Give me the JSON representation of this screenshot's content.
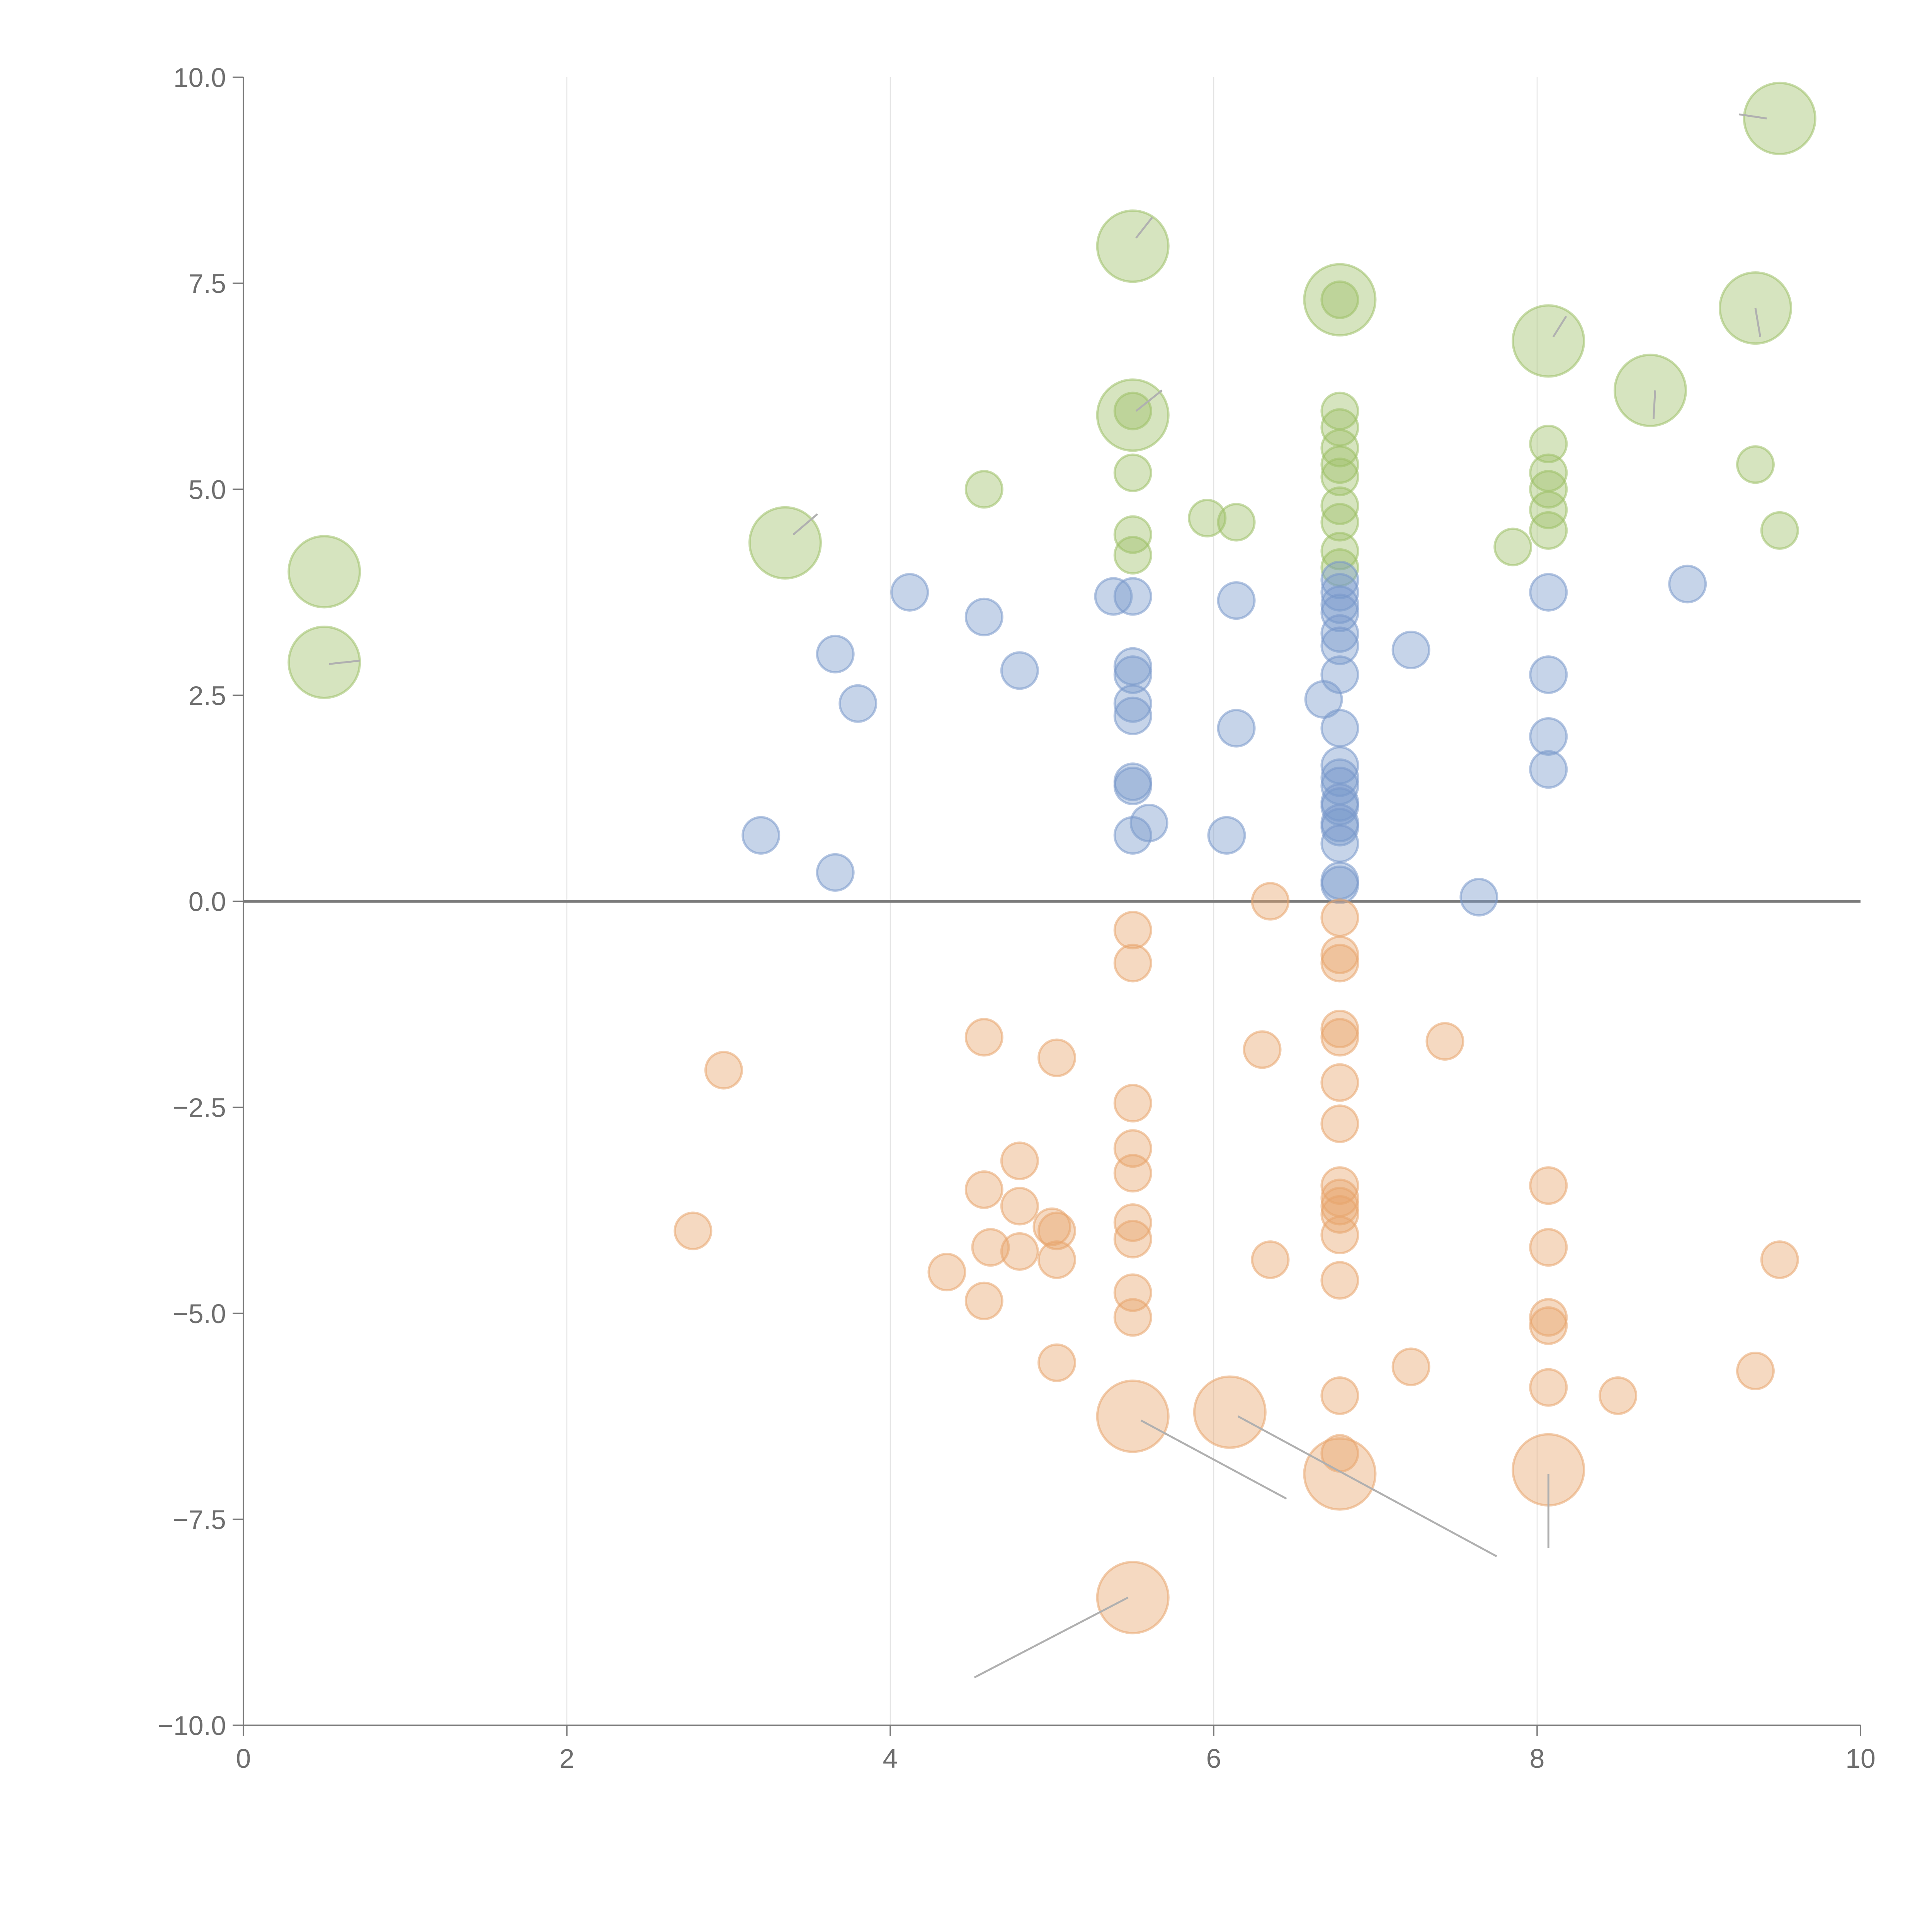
{
  "chart_data": {
    "type": "scatter",
    "title": "",
    "xlabel": "",
    "ylabel": "",
    "xlim": [
      0,
      10
    ],
    "ylim": [
      -10,
      10
    ],
    "grid": {
      "x": true,
      "y": false
    },
    "zero_line": true,
    "x_ticks": [
      "0",
      "2",
      "4",
      "6",
      "8",
      "10"
    ],
    "x_tick_values": [
      0,
      2,
      4,
      6,
      8,
      10
    ],
    "y_ticks": [
      "10.0",
      "7.5",
      "5.0",
      "2.5",
      "0.0",
      "−2.5",
      "−5.0",
      "−7.5",
      "−10.0"
    ],
    "y_tick_values": [
      10,
      7.5,
      5,
      2.5,
      0,
      -2.5,
      -5,
      -7.5,
      -10
    ],
    "series": [
      {
        "name": "green",
        "color": "#9dbf66",
        "points": [
          {
            "x": 0.5,
            "y": 4.0,
            "size": "large"
          },
          {
            "x": 0.5,
            "y": 2.9,
            "size": "large"
          },
          {
            "x": 3.35,
            "y": 4.35,
            "size": "large"
          },
          {
            "x": 5.5,
            "y": 7.95,
            "size": "large"
          },
          {
            "x": 5.5,
            "y": 5.9,
            "size": "large"
          },
          {
            "x": 6.78,
            "y": 7.3,
            "size": "large"
          },
          {
            "x": 8.07,
            "y": 6.8,
            "size": "large"
          },
          {
            "x": 8.7,
            "y": 6.2,
            "size": "large"
          },
          {
            "x": 9.35,
            "y": 7.2,
            "size": "large"
          },
          {
            "x": 9.5,
            "y": 9.5,
            "size": "large"
          },
          {
            "x": 4.58,
            "y": 5.0,
            "size": "small"
          },
          {
            "x": 5.5,
            "y": 5.2,
            "size": "small"
          },
          {
            "x": 5.5,
            "y": 4.45,
            "size": "small"
          },
          {
            "x": 5.5,
            "y": 4.2,
            "size": "small"
          },
          {
            "x": 5.5,
            "y": 5.95,
            "size": "small"
          },
          {
            "x": 5.96,
            "y": 4.65,
            "size": "small"
          },
          {
            "x": 6.14,
            "y": 4.6,
            "size": "small"
          },
          {
            "x": 6.78,
            "y": 7.3,
            "size": "small"
          },
          {
            "x": 6.78,
            "y": 5.95,
            "size": "small"
          },
          {
            "x": 6.78,
            "y": 5.75,
            "size": "small"
          },
          {
            "x": 6.78,
            "y": 5.5,
            "size": "small"
          },
          {
            "x": 6.78,
            "y": 5.3,
            "size": "small"
          },
          {
            "x": 6.78,
            "y": 5.15,
            "size": "small"
          },
          {
            "x": 6.78,
            "y": 4.8,
            "size": "small"
          },
          {
            "x": 6.78,
            "y": 4.6,
            "size": "small"
          },
          {
            "x": 6.78,
            "y": 4.25,
            "size": "small"
          },
          {
            "x": 6.78,
            "y": 4.05,
            "size": "small"
          },
          {
            "x": 8.07,
            "y": 5.55,
            "size": "small"
          },
          {
            "x": 8.07,
            "y": 5.2,
            "size": "small"
          },
          {
            "x": 8.07,
            "y": 5.0,
            "size": "small"
          },
          {
            "x": 8.07,
            "y": 4.75,
            "size": "small"
          },
          {
            "x": 8.07,
            "y": 4.5,
            "size": "small"
          },
          {
            "x": 7.85,
            "y": 4.3,
            "size": "small"
          },
          {
            "x": 9.35,
            "y": 5.3,
            "size": "small"
          },
          {
            "x": 9.5,
            "y": 4.5,
            "size": "small"
          }
        ]
      },
      {
        "name": "blue",
        "color": "#7898cb",
        "points": [
          {
            "x": 4.12,
            "y": 3.75,
            "size": "small"
          },
          {
            "x": 4.58,
            "y": 3.45,
            "size": "small"
          },
          {
            "x": 3.66,
            "y": 3.0,
            "size": "small"
          },
          {
            "x": 3.8,
            "y": 2.4,
            "size": "small"
          },
          {
            "x": 4.8,
            "y": 2.8,
            "size": "small"
          },
          {
            "x": 3.2,
            "y": 0.8,
            "size": "small"
          },
          {
            "x": 3.66,
            "y": 0.35,
            "size": "small"
          },
          {
            "x": 5.38,
            "y": 3.7,
            "size": "small"
          },
          {
            "x": 5.5,
            "y": 3.7,
            "size": "small"
          },
          {
            "x": 5.5,
            "y": 2.85,
            "size": "small"
          },
          {
            "x": 5.5,
            "y": 2.75,
            "size": "small"
          },
          {
            "x": 5.5,
            "y": 2.4,
            "size": "small"
          },
          {
            "x": 5.5,
            "y": 2.25,
            "size": "small"
          },
          {
            "x": 5.5,
            "y": 1.45,
            "size": "small"
          },
          {
            "x": 5.5,
            "y": 1.4,
            "size": "small"
          },
          {
            "x": 5.6,
            "y": 0.95,
            "size": "small"
          },
          {
            "x": 5.5,
            "y": 0.8,
            "size": "small"
          },
          {
            "x": 6.14,
            "y": 3.65,
            "size": "small"
          },
          {
            "x": 6.14,
            "y": 2.1,
            "size": "small"
          },
          {
            "x": 6.08,
            "y": 0.8,
            "size": "small"
          },
          {
            "x": 6.78,
            "y": 3.9,
            "size": "small"
          },
          {
            "x": 6.78,
            "y": 3.75,
            "size": "small"
          },
          {
            "x": 6.78,
            "y": 3.6,
            "size": "small"
          },
          {
            "x": 6.78,
            "y": 3.5,
            "size": "small"
          },
          {
            "x": 6.78,
            "y": 3.25,
            "size": "small"
          },
          {
            "x": 6.78,
            "y": 3.1,
            "size": "small"
          },
          {
            "x": 6.78,
            "y": 2.75,
            "size": "small"
          },
          {
            "x": 6.68,
            "y": 2.45,
            "size": "small"
          },
          {
            "x": 6.78,
            "y": 2.1,
            "size": "small"
          },
          {
            "x": 6.78,
            "y": 1.65,
            "size": "small"
          },
          {
            "x": 6.78,
            "y": 1.5,
            "size": "small"
          },
          {
            "x": 6.78,
            "y": 1.4,
            "size": "small"
          },
          {
            "x": 6.78,
            "y": 1.2,
            "size": "small"
          },
          {
            "x": 6.78,
            "y": 1.15,
            "size": "small"
          },
          {
            "x": 6.78,
            "y": 0.95,
            "size": "small"
          },
          {
            "x": 6.78,
            "y": 0.9,
            "size": "small"
          },
          {
            "x": 6.78,
            "y": 0.7,
            "size": "small"
          },
          {
            "x": 6.78,
            "y": 0.25,
            "size": "small"
          },
          {
            "x": 6.78,
            "y": 0.2,
            "size": "small"
          },
          {
            "x": 7.22,
            "y": 3.05,
            "size": "small"
          },
          {
            "x": 7.64,
            "y": 0.05,
            "size": "small"
          },
          {
            "x": 8.07,
            "y": 3.75,
            "size": "small"
          },
          {
            "x": 8.07,
            "y": 2.75,
            "size": "small"
          },
          {
            "x": 8.07,
            "y": 2.0,
            "size": "small"
          },
          {
            "x": 8.07,
            "y": 1.6,
            "size": "small"
          },
          {
            "x": 8.93,
            "y": 3.85,
            "size": "small"
          }
        ]
      },
      {
        "name": "orange",
        "color": "#e8a46c",
        "points": [
          {
            "x": 5.5,
            "y": -6.25,
            "size": "large"
          },
          {
            "x": 6.1,
            "y": -6.2,
            "size": "large"
          },
          {
            "x": 6.78,
            "y": -6.95,
            "size": "large"
          },
          {
            "x": 8.07,
            "y": -6.9,
            "size": "large"
          },
          {
            "x": 5.5,
            "y": -8.45,
            "size": "large"
          },
          {
            "x": 2.97,
            "y": -2.05,
            "size": "small"
          },
          {
            "x": 2.78,
            "y": -4.0,
            "size": "small"
          },
          {
            "x": 4.58,
            "y": -1.65,
            "size": "small"
          },
          {
            "x": 5.03,
            "y": -1.9,
            "size": "small"
          },
          {
            "x": 4.8,
            "y": -3.15,
            "size": "small"
          },
          {
            "x": 4.58,
            "y": -3.5,
            "size": "small"
          },
          {
            "x": 4.8,
            "y": -3.7,
            "size": "small"
          },
          {
            "x": 5.0,
            "y": -3.95,
            "size": "small"
          },
          {
            "x": 5.03,
            "y": -4.0,
            "size": "small"
          },
          {
            "x": 4.62,
            "y": -4.2,
            "size": "small"
          },
          {
            "x": 4.8,
            "y": -4.25,
            "size": "small"
          },
          {
            "x": 5.03,
            "y": -4.35,
            "size": "small"
          },
          {
            "x": 4.35,
            "y": -4.5,
            "size": "small"
          },
          {
            "x": 4.58,
            "y": -4.85,
            "size": "small"
          },
          {
            "x": 5.03,
            "y": -5.6,
            "size": "small"
          },
          {
            "x": 5.5,
            "y": -0.35,
            "size": "small"
          },
          {
            "x": 5.5,
            "y": -0.75,
            "size": "small"
          },
          {
            "x": 5.5,
            "y": -2.45,
            "size": "small"
          },
          {
            "x": 5.5,
            "y": -3.0,
            "size": "small"
          },
          {
            "x": 5.5,
            "y": -3.3,
            "size": "small"
          },
          {
            "x": 5.5,
            "y": -3.9,
            "size": "small"
          },
          {
            "x": 5.5,
            "y": -4.1,
            "size": "small"
          },
          {
            "x": 5.5,
            "y": -4.75,
            "size": "small"
          },
          {
            "x": 5.5,
            "y": -5.05,
            "size": "small"
          },
          {
            "x": 6.35,
            "y": 0.0,
            "size": "small"
          },
          {
            "x": 6.3,
            "y": -1.8,
            "size": "small"
          },
          {
            "x": 6.35,
            "y": -4.35,
            "size": "small"
          },
          {
            "x": 6.78,
            "y": -0.2,
            "size": "small"
          },
          {
            "x": 6.78,
            "y": -0.65,
            "size": "small"
          },
          {
            "x": 6.78,
            "y": -0.75,
            "size": "small"
          },
          {
            "x": 6.78,
            "y": -1.55,
            "size": "small"
          },
          {
            "x": 6.78,
            "y": -1.65,
            "size": "small"
          },
          {
            "x": 6.78,
            "y": -2.2,
            "size": "small"
          },
          {
            "x": 6.78,
            "y": -2.7,
            "size": "small"
          },
          {
            "x": 6.78,
            "y": -3.45,
            "size": "small"
          },
          {
            "x": 6.78,
            "y": -3.6,
            "size": "small"
          },
          {
            "x": 6.78,
            "y": -3.7,
            "size": "small"
          },
          {
            "x": 6.78,
            "y": -3.8,
            "size": "small"
          },
          {
            "x": 6.78,
            "y": -4.05,
            "size": "small"
          },
          {
            "x": 6.78,
            "y": -4.6,
            "size": "small"
          },
          {
            "x": 6.78,
            "y": -6.0,
            "size": "small"
          },
          {
            "x": 6.78,
            "y": -6.7,
            "size": "small"
          },
          {
            "x": 7.22,
            "y": -5.65,
            "size": "small"
          },
          {
            "x": 7.43,
            "y": -1.7,
            "size": "small"
          },
          {
            "x": 8.07,
            "y": -3.45,
            "size": "small"
          },
          {
            "x": 8.07,
            "y": -4.2,
            "size": "small"
          },
          {
            "x": 8.07,
            "y": -5.05,
            "size": "small"
          },
          {
            "x": 8.07,
            "y": -5.15,
            "size": "small"
          },
          {
            "x": 8.07,
            "y": -5.9,
            "size": "small"
          },
          {
            "x": 8.5,
            "y": -6.0,
            "size": "small"
          },
          {
            "x": 9.35,
            "y": -5.7,
            "size": "small"
          },
          {
            "x": 9.5,
            "y": -4.35,
            "size": "small"
          }
        ]
      }
    ],
    "annotations": [
      {
        "from": [
          0.53,
          2.88
        ],
        "to": [
          0.72,
          2.92
        ],
        "color": "#ffffff"
      },
      {
        "from": [
          3.4,
          4.45
        ],
        "to": [
          3.55,
          4.7
        ],
        "color": "#ffffff"
      },
      {
        "from": [
          5.52,
          8.05
        ],
        "to": [
          5.62,
          8.3
        ],
        "color": "#ffffff"
      },
      {
        "from": [
          5.52,
          5.95
        ],
        "to": [
          5.68,
          6.2
        ],
        "color": "#ffffff"
      },
      {
        "from": [
          8.1,
          6.85
        ],
        "to": [
          8.18,
          7.1
        ],
        "color": "#ffffff"
      },
      {
        "from": [
          8.72,
          5.85
        ],
        "to": [
          8.73,
          6.2
        ],
        "color": "#ffffff"
      },
      {
        "from": [
          9.38,
          6.85
        ],
        "to": [
          9.35,
          7.2
        ],
        "color": "#ffffff"
      },
      {
        "from": [
          9.42,
          9.5
        ],
        "to": [
          9.25,
          9.55
        ],
        "color": "#ffffff"
      },
      {
        "from": [
          5.55,
          -6.3
        ],
        "to": [
          6.45,
          -7.25
        ],
        "color": "#b0b0b0"
      },
      {
        "from": [
          6.15,
          -6.25
        ],
        "to": [
          7.75,
          -7.95
        ],
        "color": "#b0b0b0"
      },
      {
        "from": [
          8.07,
          -6.95
        ],
        "to": [
          8.07,
          -7.85
        ],
        "color": "#b0b0b0"
      },
      {
        "from": [
          5.47,
          -8.45
        ],
        "to": [
          4.52,
          -9.42
        ],
        "color": "#b0b0b0"
      }
    ]
  }
}
